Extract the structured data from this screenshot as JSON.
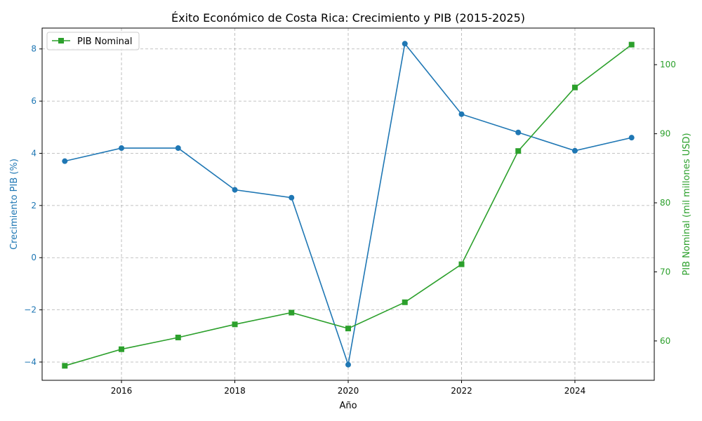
{
  "chart_data": {
    "type": "line",
    "title": "Éxito Económico de Costa Rica: Crecimiento y PIB (2015-2025)",
    "xlabel": "Año",
    "x": [
      2015,
      2016,
      2017,
      2018,
      2019,
      2020,
      2021,
      2022,
      2023,
      2024,
      2025
    ],
    "xlim": [
      2014.6,
      2025.4
    ],
    "xticks": [
      2016,
      2018,
      2020,
      2022,
      2024
    ],
    "grid": true,
    "legend": {
      "position": "top-left"
    },
    "axes": {
      "left": {
        "label": "Crecimiento PIB (%)",
        "ylim": [
          -4.7,
          8.8
        ],
        "ticks": [
          -4,
          -2,
          0,
          2,
          4,
          6,
          8
        ],
        "tick_labels": [
          "−4",
          "−2",
          "0",
          "2",
          "4",
          "6",
          "8"
        ],
        "color": "#1f77b4"
      },
      "right": {
        "label": "PIB Nominal (mil millones USD)",
        "ylim": [
          54.3,
          105.3
        ],
        "ticks": [
          60,
          70,
          80,
          90,
          100
        ],
        "tick_labels": [
          "60",
          "70",
          "80",
          "90",
          "100"
        ],
        "color": "#2ca02c"
      }
    },
    "series": [
      {
        "axis": "left",
        "marker": "circle",
        "color": "#1f77b4",
        "values": [
          3.7,
          4.2,
          4.2,
          2.6,
          2.3,
          -4.1,
          8.2,
          5.5,
          4.8,
          4.1,
          4.6
        ]
      },
      {
        "name": "PIB Nominal",
        "axis": "right",
        "marker": "square",
        "color": "#2ca02c",
        "values": [
          56.4,
          58.8,
          60.5,
          62.4,
          64.1,
          61.8,
          65.6,
          71.1,
          87.5,
          96.7,
          102.9
        ]
      }
    ]
  }
}
